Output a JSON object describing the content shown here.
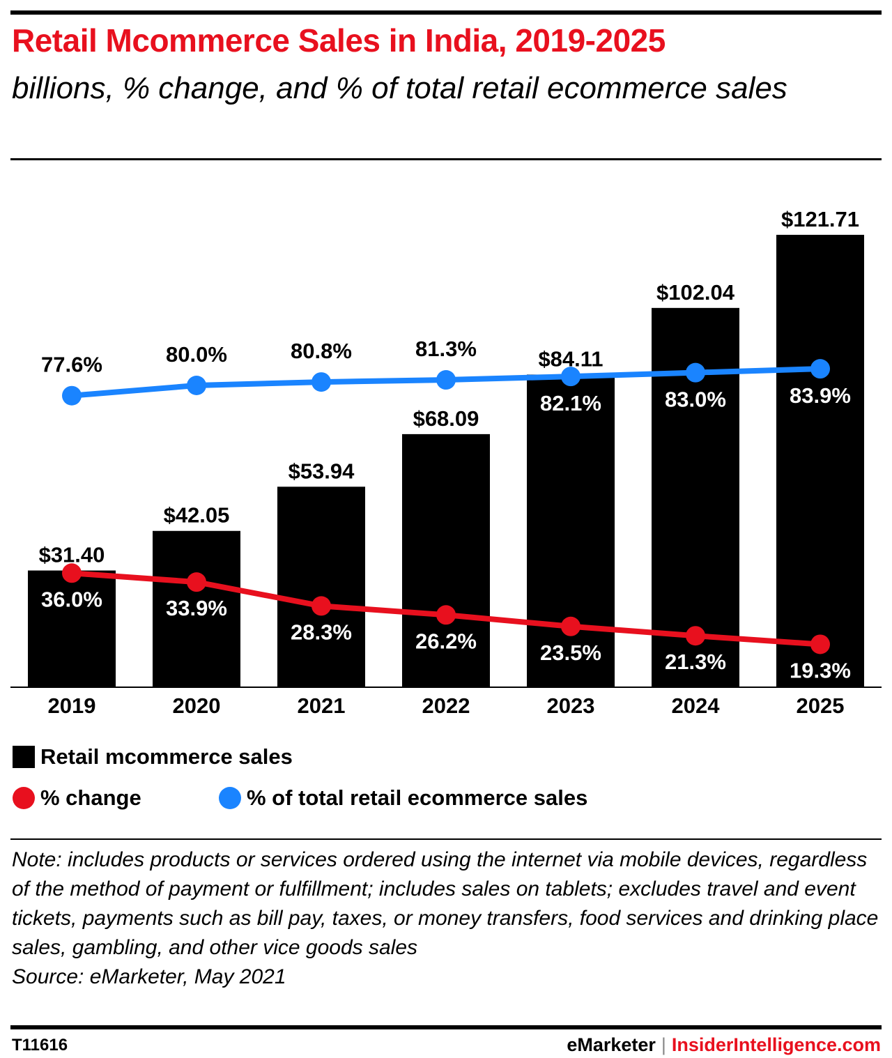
{
  "title": "Retail Mcommerce Sales in India, 2019-2025",
  "subtitle": "billions, % change, and % of total retail ecommerce sales",
  "colors": {
    "title": "#e8101e",
    "bars": "#000000",
    "pct_change": "#e8101e",
    "pct_total": "#1a84ff"
  },
  "chart_data": {
    "type": "bar+line",
    "categories": [
      "2019",
      "2020",
      "2021",
      "2022",
      "2023",
      "2024",
      "2025"
    ],
    "series": [
      {
        "name": "Retail mcommerce sales",
        "type": "bar",
        "values": [
          31.4,
          42.05,
          53.94,
          68.09,
          84.11,
          102.04,
          121.71
        ],
        "labels": [
          "$31.40",
          "$42.05",
          "$53.94",
          "$68.09",
          "$84.11",
          "$102.04",
          "$121.71"
        ]
      },
      {
        "name": "% change",
        "type": "line",
        "values": [
          36.0,
          33.9,
          28.3,
          26.2,
          23.5,
          21.3,
          19.3
        ],
        "labels": [
          "36.0%",
          "33.9%",
          "28.3%",
          "26.2%",
          "23.5%",
          "21.3%",
          "19.3%"
        ]
      },
      {
        "name": "% of total retail ecommerce sales",
        "type": "line",
        "values": [
          77.6,
          80.0,
          80.8,
          81.3,
          82.1,
          83.0,
          83.9
        ],
        "labels": [
          "77.6%",
          "80.0%",
          "80.8%",
          "81.3%",
          "82.1%",
          "83.0%",
          "83.9%"
        ]
      }
    ],
    "grid": false,
    "legend_position": "bottom-left"
  },
  "legend": {
    "bars": "Retail mcommerce sales",
    "change": "% change",
    "total": "% of total retail ecommerce sales"
  },
  "note": "Note: includes products or services ordered using the internet via mobile devices, regardless of the method of payment or fulfillment; includes sales on tablets; excludes travel and event tickets, payments such as bill pay, taxes, or money transfers, food services and drinking place sales, gambling, and other vice goods sales",
  "source": "Source: eMarketer, May 2021",
  "footer": {
    "id": "T11616",
    "brand1": "eMarketer",
    "separator": "|",
    "brand2": "InsiderIntelligence.com"
  }
}
